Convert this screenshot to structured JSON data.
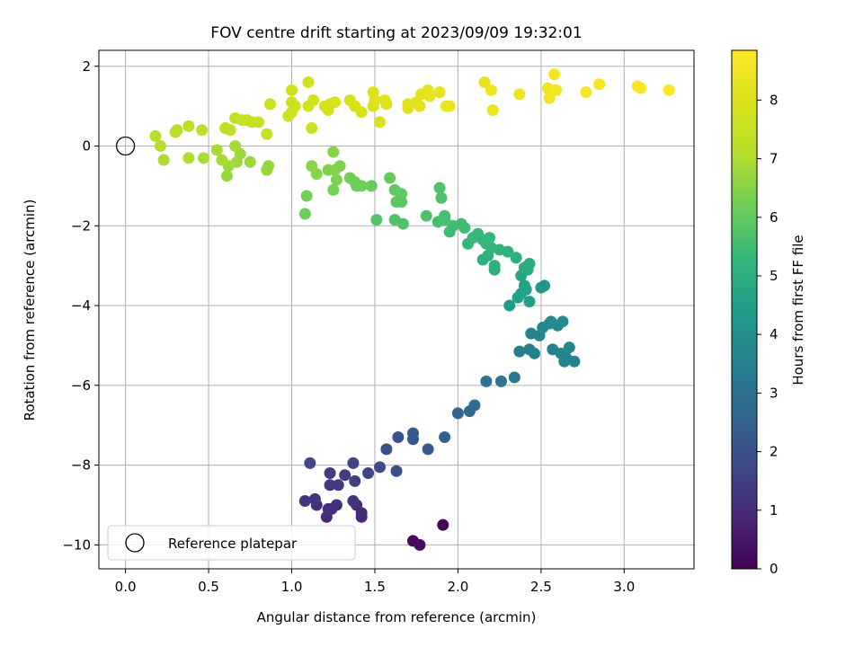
{
  "chart_data": {
    "type": "scatter",
    "title": "FOV centre drift starting at 2023/09/09 19:32:01",
    "xlabel": "Angular distance from reference (arcmin)",
    "ylabel": "Rotation from reference (arcmin)",
    "xlim": [
      -0.16,
      3.42
    ],
    "ylim": [
      -10.6,
      2.4
    ],
    "xticks": [
      0.0,
      0.5,
      1.0,
      1.5,
      2.0,
      2.5,
      3.0
    ],
    "xtick_labels": [
      "0.0",
      "0.5",
      "1.0",
      "1.5",
      "2.0",
      "2.5",
      "3.0"
    ],
    "yticks": [
      2,
      0,
      -2,
      -4,
      -6,
      -8,
      -10
    ],
    "ytick_labels": [
      "2",
      "0",
      "−2",
      "−4",
      "−6",
      "−8",
      "−10"
    ],
    "grid": true,
    "legend": {
      "position": "lower-left",
      "entries": [
        "Reference platepar"
      ]
    },
    "colorbar": {
      "label": "Hours from first FF file",
      "colormap": "viridis",
      "range": [
        0,
        8.85
      ],
      "ticks": [
        0,
        1,
        2,
        3,
        4,
        5,
        6,
        7,
        8
      ],
      "tick_labels": [
        "0",
        "1",
        "2",
        "3",
        "4",
        "5",
        "6",
        "7",
        "8"
      ]
    },
    "reference_point": {
      "x": 0.0,
      "y": 0.0,
      "marker": "open-circle",
      "color": "#000000"
    },
    "points": [
      {
        "x": 1.91,
        "y": -9.5,
        "t": 0.1
      },
      {
        "x": 1.73,
        "y": -9.9,
        "t": 0.2
      },
      {
        "x": 1.77,
        "y": -10.0,
        "t": 0.25
      },
      {
        "x": 1.21,
        "y": -9.3,
        "t": 0.9
      },
      {
        "x": 1.42,
        "y": -9.3,
        "t": 0.9
      },
      {
        "x": 1.15,
        "y": -9.0,
        "t": 1.0
      },
      {
        "x": 1.24,
        "y": -9.1,
        "t": 1.0
      },
      {
        "x": 1.27,
        "y": -9.0,
        "t": 1.1
      },
      {
        "x": 1.22,
        "y": -9.1,
        "t": 1.05
      },
      {
        "x": 1.39,
        "y": -9.0,
        "t": 1.05
      },
      {
        "x": 1.42,
        "y": -9.2,
        "t": 0.95
      },
      {
        "x": 1.08,
        "y": -8.9,
        "t": 1.2
      },
      {
        "x": 1.14,
        "y": -8.85,
        "t": 1.2
      },
      {
        "x": 1.37,
        "y": -8.9,
        "t": 1.2
      },
      {
        "x": 1.23,
        "y": -8.5,
        "t": 1.3
      },
      {
        "x": 1.28,
        "y": -8.5,
        "t": 1.35
      },
      {
        "x": 1.23,
        "y": -8.2,
        "t": 1.4
      },
      {
        "x": 1.32,
        "y": -8.25,
        "t": 1.45
      },
      {
        "x": 1.38,
        "y": -8.4,
        "t": 1.5
      },
      {
        "x": 1.46,
        "y": -8.2,
        "t": 1.6
      },
      {
        "x": 1.11,
        "y": -7.95,
        "t": 1.65
      },
      {
        "x": 1.37,
        "y": -7.95,
        "t": 1.6
      },
      {
        "x": 1.53,
        "y": -8.05,
        "t": 1.8
      },
      {
        "x": 1.63,
        "y": -8.15,
        "t": 1.9
      },
      {
        "x": 1.57,
        "y": -7.6,
        "t": 2.0
      },
      {
        "x": 1.64,
        "y": -7.3,
        "t": 2.1
      },
      {
        "x": 1.73,
        "y": -7.35,
        "t": 2.2
      },
      {
        "x": 1.73,
        "y": -7.2,
        "t": 2.25
      },
      {
        "x": 1.82,
        "y": -7.6,
        "t": 2.3
      },
      {
        "x": 1.92,
        "y": -7.3,
        "t": 2.4
      },
      {
        "x": 2.0,
        "y": -6.7,
        "t": 2.6
      },
      {
        "x": 2.07,
        "y": -6.65,
        "t": 2.7
      },
      {
        "x": 2.1,
        "y": -6.5,
        "t": 2.8
      },
      {
        "x": 2.17,
        "y": -5.9,
        "t": 3.0
      },
      {
        "x": 2.26,
        "y": -5.9,
        "t": 3.1
      },
      {
        "x": 2.34,
        "y": -5.8,
        "t": 3.2
      },
      {
        "x": 2.37,
        "y": -5.15,
        "t": 3.4
      },
      {
        "x": 2.43,
        "y": -5.1,
        "t": 3.45
      },
      {
        "x": 2.46,
        "y": -5.2,
        "t": 3.5
      },
      {
        "x": 2.44,
        "y": -4.7,
        "t": 3.6
      },
      {
        "x": 2.49,
        "y": -4.75,
        "t": 3.65
      },
      {
        "x": 2.51,
        "y": -4.55,
        "t": 3.7
      },
      {
        "x": 2.55,
        "y": -4.45,
        "t": 3.75
      },
      {
        "x": 2.56,
        "y": -4.4,
        "t": 3.8
      },
      {
        "x": 2.57,
        "y": -5.1,
        "t": 3.55
      },
      {
        "x": 2.6,
        "y": -4.5,
        "t": 3.8
      },
      {
        "x": 2.62,
        "y": -5.2,
        "t": 3.6
      },
      {
        "x": 2.65,
        "y": -5.3,
        "t": 3.6
      },
      {
        "x": 2.63,
        "y": -4.4,
        "t": 3.85
      },
      {
        "x": 2.67,
        "y": -5.05,
        "t": 3.7
      },
      {
        "x": 2.7,
        "y": -5.4,
        "t": 3.55
      },
      {
        "x": 2.64,
        "y": -5.4,
        "t": 3.55
      },
      {
        "x": 2.52,
        "y": -3.5,
        "t": 4.2
      },
      {
        "x": 2.5,
        "y": -3.55,
        "t": 4.2
      },
      {
        "x": 2.31,
        "y": -4.0,
        "t": 4.4
      },
      {
        "x": 2.36,
        "y": -3.8,
        "t": 4.5
      },
      {
        "x": 2.38,
        "y": -3.7,
        "t": 4.55
      },
      {
        "x": 2.4,
        "y": -3.5,
        "t": 4.6
      },
      {
        "x": 2.41,
        "y": -3.6,
        "t": 4.6
      },
      {
        "x": 2.43,
        "y": -3.9,
        "t": 4.5
      },
      {
        "x": 2.38,
        "y": -3.25,
        "t": 4.7
      },
      {
        "x": 2.4,
        "y": -3.05,
        "t": 4.8
      },
      {
        "x": 2.42,
        "y": -3.1,
        "t": 4.85
      },
      {
        "x": 2.43,
        "y": -2.95,
        "t": 4.9
      },
      {
        "x": 2.35,
        "y": -2.8,
        "t": 5.0
      },
      {
        "x": 2.22,
        "y": -3.1,
        "t": 5.0
      },
      {
        "x": 2.22,
        "y": -3.0,
        "t": 5.05
      },
      {
        "x": 2.3,
        "y": -2.65,
        "t": 5.1
      },
      {
        "x": 2.25,
        "y": -2.6,
        "t": 5.15
      },
      {
        "x": 2.2,
        "y": -2.55,
        "t": 5.2
      },
      {
        "x": 2.17,
        "y": -2.45,
        "t": 5.25
      },
      {
        "x": 2.15,
        "y": -2.35,
        "t": 5.3
      },
      {
        "x": 2.19,
        "y": -2.3,
        "t": 5.3
      },
      {
        "x": 2.18,
        "y": -2.75,
        "t": 5.1
      },
      {
        "x": 2.15,
        "y": -2.85,
        "t": 5.0
      },
      {
        "x": 2.12,
        "y": -2.2,
        "t": 5.35
      },
      {
        "x": 2.06,
        "y": -2.45,
        "t": 5.3
      },
      {
        "x": 2.09,
        "y": -2.3,
        "t": 5.35
      },
      {
        "x": 2.04,
        "y": -2.05,
        "t": 5.45
      },
      {
        "x": 2.02,
        "y": -1.95,
        "t": 5.5
      },
      {
        "x": 1.97,
        "y": -2.0,
        "t": 5.5
      },
      {
        "x": 1.95,
        "y": -2.15,
        "t": 5.45
      },
      {
        "x": 1.92,
        "y": -1.75,
        "t": 5.6
      },
      {
        "x": 1.92,
        "y": -1.85,
        "t": 5.6
      },
      {
        "x": 1.88,
        "y": -1.9,
        "t": 5.6
      },
      {
        "x": 1.9,
        "y": -1.3,
        "t": 5.7
      },
      {
        "x": 1.89,
        "y": -1.05,
        "t": 5.75
      },
      {
        "x": 1.81,
        "y": -1.75,
        "t": 5.7
      },
      {
        "x": 1.67,
        "y": -1.95,
        "t": 5.75
      },
      {
        "x": 1.62,
        "y": -1.85,
        "t": 5.75
      },
      {
        "x": 1.51,
        "y": -1.85,
        "t": 5.8
      },
      {
        "x": 1.63,
        "y": -1.4,
        "t": 5.9
      },
      {
        "x": 1.66,
        "y": -1.4,
        "t": 5.9
      },
      {
        "x": 1.66,
        "y": -1.2,
        "t": 5.95
      },
      {
        "x": 1.62,
        "y": -1.1,
        "t": 6.0
      },
      {
        "x": 1.59,
        "y": -0.8,
        "t": 6.05
      },
      {
        "x": 1.48,
        "y": -1.0,
        "t": 6.1
      },
      {
        "x": 1.42,
        "y": -1.0,
        "t": 6.15
      },
      {
        "x": 1.38,
        "y": -0.9,
        "t": 6.2
      },
      {
        "x": 1.39,
        "y": -1.0,
        "t": 6.2
      },
      {
        "x": 1.35,
        "y": -0.8,
        "t": 6.25
      },
      {
        "x": 1.25,
        "y": -1.1,
        "t": 6.3
      },
      {
        "x": 1.27,
        "y": -0.85,
        "t": 6.35
      },
      {
        "x": 1.29,
        "y": -0.5,
        "t": 6.4
      },
      {
        "x": 1.26,
        "y": -0.6,
        "t": 6.45
      },
      {
        "x": 1.22,
        "y": -0.6,
        "t": 6.4
      },
      {
        "x": 1.25,
        "y": -0.15,
        "t": 6.5
      },
      {
        "x": 1.15,
        "y": -0.7,
        "t": 6.5
      },
      {
        "x": 1.12,
        "y": -0.5,
        "t": 6.55
      },
      {
        "x": 1.09,
        "y": -1.25,
        "t": 6.25
      },
      {
        "x": 1.08,
        "y": -1.7,
        "t": 6.15
      },
      {
        "x": 0.86,
        "y": -0.5,
        "t": 6.7
      },
      {
        "x": 0.85,
        "y": -0.6,
        "t": 6.7
      },
      {
        "x": 0.75,
        "y": -0.4,
        "t": 6.75
      },
      {
        "x": 0.69,
        "y": -0.2,
        "t": 6.8
      },
      {
        "x": 0.67,
        "y": -0.4,
        "t": 6.8
      },
      {
        "x": 0.66,
        "y": 0.0,
        "t": 6.85
      },
      {
        "x": 0.62,
        "y": -0.5,
        "t": 6.8
      },
      {
        "x": 0.61,
        "y": -0.75,
        "t": 6.7
      },
      {
        "x": 0.58,
        "y": -0.35,
        "t": 6.9
      },
      {
        "x": 0.55,
        "y": -0.1,
        "t": 6.9
      },
      {
        "x": 0.47,
        "y": -0.3,
        "t": 6.95
      },
      {
        "x": 0.38,
        "y": -0.3,
        "t": 7.0
      },
      {
        "x": 0.23,
        "y": -0.35,
        "t": 7.0
      },
      {
        "x": 0.21,
        "y": 0.0,
        "t": 7.1
      },
      {
        "x": 0.18,
        "y": 0.25,
        "t": 7.15
      },
      {
        "x": 0.3,
        "y": 0.35,
        "t": 7.2
      },
      {
        "x": 0.31,
        "y": 0.4,
        "t": 7.2
      },
      {
        "x": 0.38,
        "y": 0.5,
        "t": 7.25
      },
      {
        "x": 0.46,
        "y": 0.4,
        "t": 7.3
      },
      {
        "x": 0.6,
        "y": 0.45,
        "t": 7.35
      },
      {
        "x": 0.63,
        "y": 0.4,
        "t": 7.35
      },
      {
        "x": 0.66,
        "y": 0.7,
        "t": 7.4
      },
      {
        "x": 0.7,
        "y": 0.65,
        "t": 7.45
      },
      {
        "x": 0.73,
        "y": 0.65,
        "t": 7.5
      },
      {
        "x": 0.76,
        "y": 0.6,
        "t": 7.5
      },
      {
        "x": 0.8,
        "y": 0.6,
        "t": 7.55
      },
      {
        "x": 0.85,
        "y": 0.3,
        "t": 7.45
      },
      {
        "x": 0.87,
        "y": 1.05,
        "t": 7.6
      },
      {
        "x": 0.98,
        "y": 0.75,
        "t": 7.65
      },
      {
        "x": 1.0,
        "y": 0.85,
        "t": 7.7
      },
      {
        "x": 1.0,
        "y": 1.1,
        "t": 7.7
      },
      {
        "x": 1.0,
        "y": 1.4,
        "t": 7.75
      },
      {
        "x": 1.02,
        "y": 1.0,
        "t": 7.75
      },
      {
        "x": 1.1,
        "y": 1.6,
        "t": 7.8
      },
      {
        "x": 1.1,
        "y": 1.0,
        "t": 7.8
      },
      {
        "x": 1.12,
        "y": 0.45,
        "t": 7.6
      },
      {
        "x": 1.13,
        "y": 1.15,
        "t": 7.85
      },
      {
        "x": 1.2,
        "y": 1.0,
        "t": 7.85
      },
      {
        "x": 1.22,
        "y": 0.9,
        "t": 7.9
      },
      {
        "x": 1.23,
        "y": 1.05,
        "t": 7.9
      },
      {
        "x": 1.26,
        "y": 1.1,
        "t": 7.95
      },
      {
        "x": 1.35,
        "y": 1.15,
        "t": 7.95
      },
      {
        "x": 1.38,
        "y": 1.0,
        "t": 8.0
      },
      {
        "x": 1.42,
        "y": 0.85,
        "t": 8.0
      },
      {
        "x": 1.49,
        "y": 1.0,
        "t": 8.05
      },
      {
        "x": 1.49,
        "y": 1.35,
        "t": 8.05
      },
      {
        "x": 1.5,
        "y": 1.15,
        "t": 8.1
      },
      {
        "x": 1.53,
        "y": 0.6,
        "t": 7.95
      },
      {
        "x": 1.56,
        "y": 1.15,
        "t": 8.1
      },
      {
        "x": 1.57,
        "y": 1.05,
        "t": 8.1
      },
      {
        "x": 1.7,
        "y": 0.95,
        "t": 8.15
      },
      {
        "x": 1.7,
        "y": 1.05,
        "t": 8.15
      },
      {
        "x": 1.75,
        "y": 1.1,
        "t": 8.2
      },
      {
        "x": 1.77,
        "y": 1.0,
        "t": 8.2
      },
      {
        "x": 1.78,
        "y": 1.3,
        "t": 8.25
      },
      {
        "x": 1.82,
        "y": 1.4,
        "t": 8.25
      },
      {
        "x": 1.83,
        "y": 1.25,
        "t": 8.3
      },
      {
        "x": 1.89,
        "y": 1.35,
        "t": 8.3
      },
      {
        "x": 1.93,
        "y": 1.0,
        "t": 8.3
      },
      {
        "x": 1.95,
        "y": 1.0,
        "t": 8.35
      },
      {
        "x": 2.16,
        "y": 1.6,
        "t": 8.4
      },
      {
        "x": 2.2,
        "y": 1.4,
        "t": 8.45
      },
      {
        "x": 2.21,
        "y": 0.9,
        "t": 8.35
      },
      {
        "x": 2.37,
        "y": 1.3,
        "t": 8.5
      },
      {
        "x": 2.54,
        "y": 1.45,
        "t": 8.55
      },
      {
        "x": 2.55,
        "y": 1.2,
        "t": 8.55
      },
      {
        "x": 2.58,
        "y": 1.8,
        "t": 8.6
      },
      {
        "x": 2.59,
        "y": 1.4,
        "t": 8.6
      },
      {
        "x": 2.77,
        "y": 1.35,
        "t": 8.65
      },
      {
        "x": 2.85,
        "y": 1.55,
        "t": 8.7
      },
      {
        "x": 3.08,
        "y": 1.5,
        "t": 8.75
      },
      {
        "x": 3.1,
        "y": 1.45,
        "t": 8.78
      },
      {
        "x": 3.27,
        "y": 1.4,
        "t": 8.82
      }
    ]
  }
}
